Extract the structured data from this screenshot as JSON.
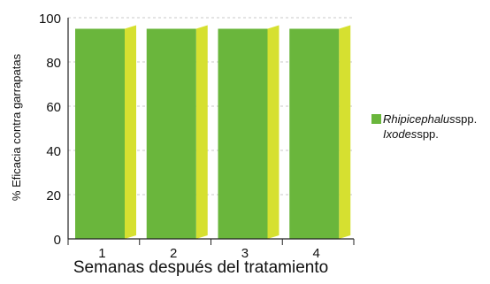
{
  "chart_data": {
    "type": "bar",
    "categories": [
      "1",
      "2",
      "3",
      "4"
    ],
    "series": [
      {
        "name": "Rhipicephalus spp.",
        "values": [
          95,
          95,
          95,
          95
        ]
      },
      {
        "name": "Ixodes spp.",
        "values": [
          95,
          95,
          95,
          95
        ]
      }
    ],
    "xlabel": "Semanas después del tratamiento",
    "ylabel": "% Eficacia contra garrapatas",
    "ylim": [
      0,
      100
    ],
    "yticks": [
      "0",
      "20",
      "40",
      "60",
      "80",
      "100"
    ],
    "grid": true,
    "legend_position": "right"
  },
  "colors": {
    "rhipicephalus": "#6ab63c",
    "ixodes": "#d6e030",
    "grid": "#c8c8c8",
    "axis": "#222222"
  },
  "legend": [
    {
      "italic": "Rhipicephalus",
      "rest": " spp."
    },
    {
      "italic": "Ixodes",
      "rest": " spp."
    }
  ]
}
